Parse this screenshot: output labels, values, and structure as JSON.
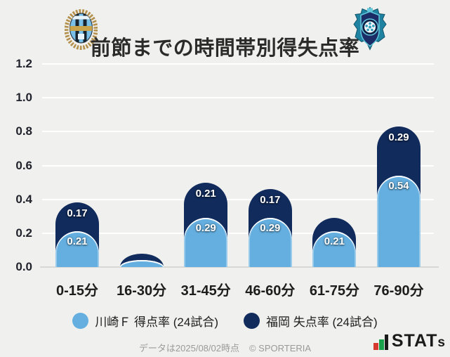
{
  "header": {
    "title": "前節までの時間帯別得失点率",
    "left_crest": "kawasaki-frontale-crest",
    "right_crest": "avispa-fukuoka-crest"
  },
  "chart_data": {
    "type": "bar",
    "variant": "stacked-rounded-top",
    "title": "前節までの時間帯別得失点率",
    "categories": [
      "0-15分",
      "16-30分",
      "31-45分",
      "46-60分",
      "61-75分",
      "76-90分"
    ],
    "series": [
      {
        "name": "川崎Ｆ 得点率 (24試合)",
        "color": "#64afe0",
        "values": [
          0.21,
          0.04,
          0.29,
          0.29,
          0.21,
          0.54
        ],
        "labels": [
          "0.21",
          "",
          "0.29",
          "0.29",
          "0.21",
          "0.54"
        ]
      },
      {
        "name": "福岡 失点率 (24試合)",
        "color": "#112b5c",
        "values": [
          0.17,
          0.04,
          0.21,
          0.17,
          0.08,
          0.29
        ],
        "labels": [
          "0.17",
          "",
          "0.21",
          "0.17",
          "",
          "0.29"
        ]
      }
    ],
    "stacked": true,
    "ylim": [
      0,
      1.2
    ],
    "yticks": [
      0,
      0.2,
      0.4,
      0.6,
      0.8,
      1.0,
      1.2
    ],
    "ytick_labels": [
      "0.0",
      "0.2",
      "0.4",
      "0.6",
      "0.8",
      "1.0",
      "1.2"
    ],
    "grid": "horizontal-white",
    "legend_position": "bottom",
    "background_color": "#f0f0ee",
    "gridline_color": "#ffffff",
    "baseline_color": "#d8d8d5"
  },
  "footer": {
    "note": "データは2025/08/02時点",
    "copyright": "© SPORTERIA",
    "logo_text_main": "STAT",
    "logo_text_small": "s",
    "logo_colors": {
      "red": "#d63a2f",
      "green": "#18a04b",
      "dark": "#1a1a1a"
    }
  }
}
